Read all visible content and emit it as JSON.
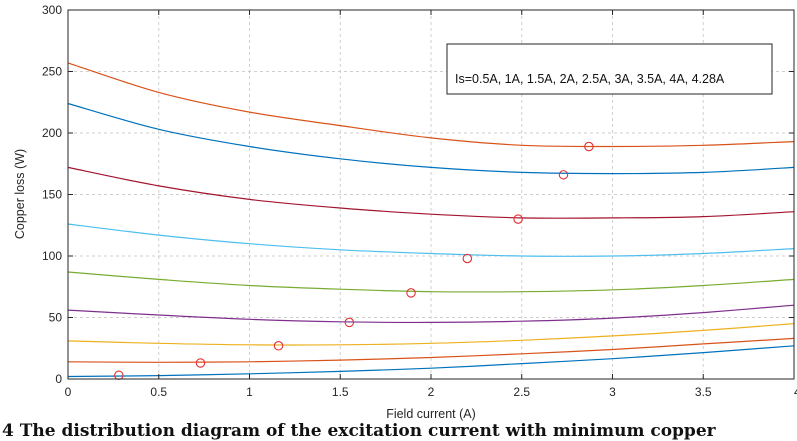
{
  "chart_data": {
    "type": "line",
    "xlabel": "Field current (A)",
    "ylabel": "Copper loss (W)",
    "xlim": [
      0,
      4
    ],
    "ylim": [
      0,
      300
    ],
    "xticks": [
      0,
      0.5,
      1,
      1.5,
      2,
      2.5,
      3,
      3.5,
      4
    ],
    "xtick_labels": [
      "0",
      "0.5",
      "1",
      "1.5",
      "2",
      "2.5",
      "3",
      "3.5",
      "4"
    ],
    "yticks": [
      0,
      50,
      100,
      150,
      200,
      250,
      300
    ],
    "ytick_labels": [
      "0",
      "50",
      "100",
      "150",
      "200",
      "250",
      "300"
    ],
    "grid": true,
    "legend_text": "Is=0.5A, 1A, 1.5A, 2A, 2.5A, 3A, 3.5A, 4A, 4.28A",
    "legend_position": "top-right",
    "caption_fragment": "4 The distribution diagram of the excitation current with minimum copper",
    "series": [
      {
        "color": "#0072bd",
        "x": [
          0,
          0.5,
          1,
          1.5,
          2,
          2.5,
          3,
          3.5,
          4
        ],
        "y": [
          2,
          2.8,
          4.2,
          6.2,
          8.8,
          12.5,
          16.5,
          21.5,
          27
        ]
      },
      {
        "color": "#d95319",
        "x": [
          0,
          0.5,
          1,
          1.5,
          2,
          2.5,
          3,
          3.5,
          4
        ],
        "y": [
          14,
          13.6,
          14,
          15.4,
          17.5,
          20.5,
          24,
          28.5,
          33
        ]
      },
      {
        "color": "#edb120",
        "x": [
          0,
          0.5,
          1,
          1.5,
          2,
          2.5,
          3,
          3.5,
          4
        ],
        "y": [
          31,
          29,
          27.8,
          27.8,
          29,
          31.5,
          35,
          39.5,
          45
        ]
      },
      {
        "color": "#7e2f8e",
        "x": [
          0,
          0.5,
          1,
          1.5,
          2,
          2.5,
          3,
          3.5,
          4
        ],
        "y": [
          56,
          52,
          48.5,
          46.5,
          46,
          47,
          49.5,
          54,
          60
        ]
      },
      {
        "color": "#77ac30",
        "x": [
          0,
          0.5,
          1,
          1.5,
          2,
          2.5,
          3,
          3.5,
          4
        ],
        "y": [
          87,
          81,
          76,
          73,
          71,
          71,
          72.5,
          76,
          81
        ]
      },
      {
        "color": "#4dbeee",
        "x": [
          0,
          0.5,
          1,
          1.5,
          2,
          2.5,
          3,
          3.5,
          4
        ],
        "y": [
          126,
          117,
          110,
          105,
          102,
          100,
          100,
          102,
          106
        ]
      },
      {
        "color": "#a2142f",
        "x": [
          0,
          0.5,
          1,
          1.5,
          2,
          2.5,
          3,
          3.5,
          4
        ],
        "y": [
          172,
          157,
          146,
          139,
          134,
          131,
          131,
          132,
          136
        ]
      },
      {
        "color": "#0072bd",
        "x": [
          0,
          0.5,
          1,
          1.5,
          2,
          2.5,
          3,
          3.5,
          4
        ],
        "y": [
          224,
          203,
          189,
          179,
          172,
          168,
          167,
          168,
          172
        ]
      },
      {
        "color": "#d95319",
        "x": [
          0,
          0.5,
          1,
          1.5,
          2,
          2.5,
          3,
          3.5,
          4
        ],
        "y": [
          257,
          233,
          217,
          206,
          196,
          190,
          189,
          190,
          193
        ]
      }
    ],
    "markers": {
      "color": "#e03030",
      "x": [
        0.28,
        0.73,
        1.16,
        1.55,
        1.89,
        2.2,
        2.48,
        2.73,
        2.87
      ],
      "y": [
        3,
        13,
        27,
        46,
        70,
        98,
        130,
        166,
        189
      ]
    }
  }
}
